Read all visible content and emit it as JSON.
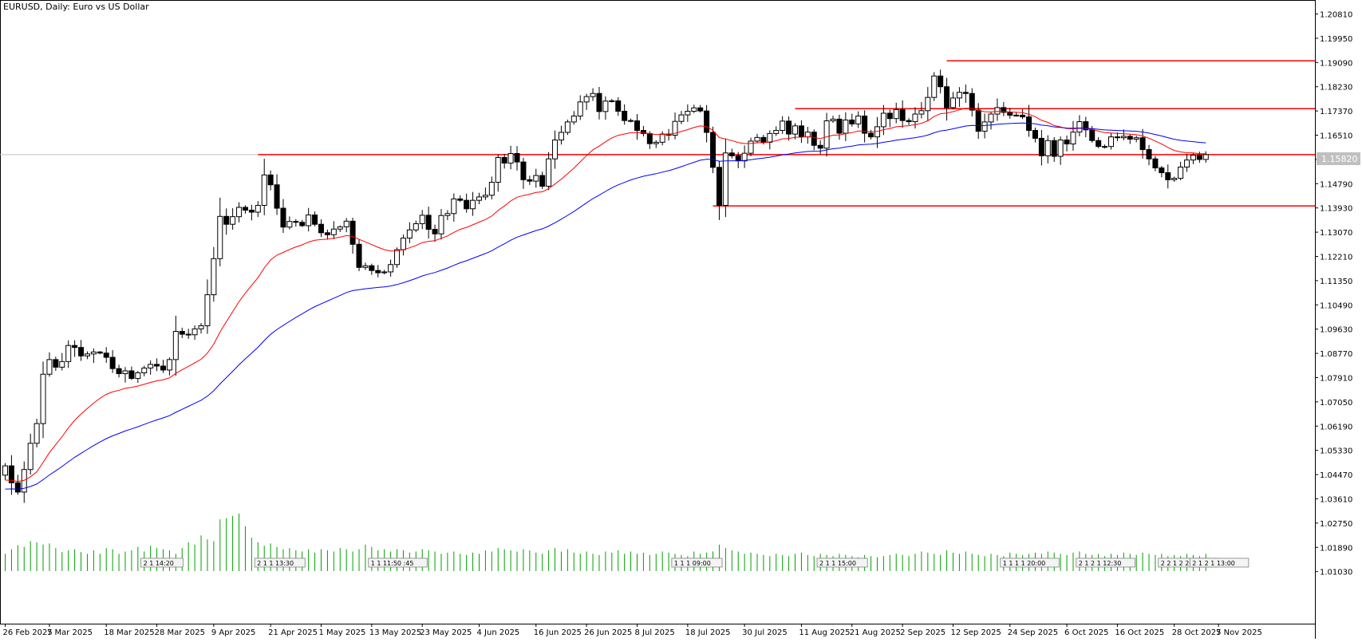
{
  "header": {
    "title": "EURUSD, Daily:  Euro vs US Dollar"
  },
  "colors": {
    "background": "#ffffff",
    "bull": "#ffffff",
    "bear": "#000000",
    "ma_fast": "#ff0000",
    "ma_slow": "#0000ff",
    "level_lines": "#ff0000",
    "volume": "#00a000",
    "price_marker": "#c0c0c0"
  },
  "current_price_label": "1.15820",
  "chart_data": {
    "type": "candlestick",
    "symbol": "EURUSD",
    "timeframe": "Daily",
    "grid": false,
    "ylim": [
      1.002,
      1.2108
    ],
    "y_ticks": [
      "1.20810",
      "1.19950",
      "1.19090",
      "1.18230",
      "1.17370",
      "1.16510",
      "1.15650",
      "1.14790",
      "1.13930",
      "1.13070",
      "1.12210",
      "1.11350",
      "1.10490",
      "1.09630",
      "1.08770",
      "1.07910",
      "1.07050",
      "1.06190",
      "1.05330",
      "1.04470",
      "1.03610",
      "1.02750",
      "1.01890",
      "1.01030"
    ],
    "x_tick_labels": [
      "26 Feb 2025",
      "7 Mar 2025",
      "18 Mar 2025",
      "28 Mar 2025",
      "9 Apr 2025",
      "21 Apr 2025",
      "1 May 2025",
      "13 May 2025",
      "23 May 2025",
      "4 Jun 2025",
      "16 Jun 2025",
      "26 Jun 2025",
      "8 Jul 2025",
      "18 Jul 2025",
      "30 Jul 2025",
      "11 Aug 2025",
      "21 Aug 2025",
      "2 Sep 2025",
      "12 Sep 2025",
      "24 Sep 2025",
      "6 Oct 2025",
      "16 Oct 2025",
      "28 Oct 2025",
      "7 Nov 2025"
    ],
    "x_tick_candle_index": [
      0,
      7,
      16,
      24,
      33,
      42,
      50,
      58,
      66,
      75,
      84,
      92,
      100,
      108,
      117,
      126,
      134,
      142,
      150,
      159,
      168,
      176,
      185,
      192
    ],
    "closes": [
      1.0478,
      1.0418,
      1.0385,
      1.0465,
      1.0558,
      1.0628,
      1.0803,
      1.0855,
      1.0828,
      1.0848,
      1.0905,
      1.0898,
      1.0868,
      1.0875,
      1.0882,
      1.0878,
      1.0863,
      1.0823,
      1.0805,
      1.0815,
      1.0788,
      1.0808,
      1.0825,
      1.0838,
      1.0832,
      1.0818,
      1.0855,
      1.0955,
      1.0945,
      1.0943,
      1.0964,
      1.0975,
      1.1085,
      1.1213,
      1.1363,
      1.1335,
      1.1362,
      1.1395,
      1.1385,
      1.1378,
      1.1402,
      1.151,
      1.1475,
      1.1392,
      1.1325,
      1.1345,
      1.1342,
      1.133,
      1.1368,
      1.1335,
      1.1305,
      1.1298,
      1.1318,
      1.1326,
      1.1346,
      1.1264,
      1.1182,
      1.1188,
      1.1171,
      1.1163,
      1.1166,
      1.1192,
      1.1245,
      1.1286,
      1.1315,
      1.1337,
      1.1367,
      1.1317,
      1.1301,
      1.1366,
      1.1373,
      1.1425,
      1.142,
      1.139,
      1.142,
      1.1432,
      1.1438,
      1.1484,
      1.1572,
      1.1552,
      1.1586,
      1.1556,
      1.1493,
      1.1488,
      1.1508,
      1.147,
      1.1567,
      1.1634,
      1.1661,
      1.1698,
      1.1719,
      1.1769,
      1.1788,
      1.1799,
      1.1735,
      1.1772,
      1.1773,
      1.1736,
      1.1703,
      1.1702,
      1.1668,
      1.1657,
      1.1621,
      1.1626,
      1.1655,
      1.1651,
      1.17,
      1.1723,
      1.1736,
      1.1748,
      1.1737,
      1.1661,
      1.1537,
      1.1402,
      1.1588,
      1.1578,
      1.156,
      1.1587,
      1.163,
      1.1643,
      1.1626,
      1.1657,
      1.1668,
      1.1701,
      1.1655,
      1.1684,
      1.1645,
      1.1662,
      1.1615,
      1.1605,
      1.1702,
      1.1708,
      1.1658,
      1.1705,
      1.1691,
      1.1719,
      1.1658,
      1.1645,
      1.1681,
      1.1729,
      1.171,
      1.1742,
      1.1703,
      1.1699,
      1.1726,
      1.1738,
      1.1785,
      1.1861,
      1.1823,
      1.1749,
      1.1783,
      1.1803,
      1.1799,
      1.174,
      1.1665,
      1.1698,
      1.1726,
      1.1749,
      1.1732,
      1.1722,
      1.1722,
      1.1716,
      1.1668,
      1.164,
      1.1578,
      1.1632,
      1.1576,
      1.1634,
      1.162,
      1.1662,
      1.1699,
      1.167,
      1.1632,
      1.1611,
      1.1611,
      1.1645,
      1.1642,
      1.1647,
      1.1637,
      1.1642,
      1.16,
      1.1567,
      1.1535,
      1.1518,
      1.1493,
      1.1498,
      1.1538,
      1.1563,
      1.158,
      1.1565,
      1.1582
    ],
    "ma_fast_name": "",
    "ma_slow_name": "",
    "ma_fast_period": 20,
    "ma_slow_period": 50,
    "ma_fast_seed": 1.0422,
    "ma_slow_seed": 1.0392,
    "horizontal_levels": [
      {
        "price": 1.1915,
        "from_index": 149
      },
      {
        "price": 1.1745,
        "from_index": 125
      },
      {
        "price": 1.1582,
        "from_index": 40
      },
      {
        "price": 1.14,
        "from_index": 112
      }
    ],
    "volume_heights": [
      0.3,
      0.38,
      0.45,
      0.42,
      0.52,
      0.5,
      0.46,
      0.48,
      0.4,
      0.33,
      0.36,
      0.38,
      0.33,
      0.3,
      0.36,
      0.3,
      0.4,
      0.38,
      0.3,
      0.34,
      0.36,
      0.42,
      0.34,
      0.44,
      0.4,
      0.38,
      0.36,
      0.3,
      0.4,
      0.5,
      0.46,
      0.62,
      0.55,
      0.52,
      0.9,
      0.92,
      0.96,
      1.0,
      0.78,
      0.58,
      0.5,
      0.44,
      0.48,
      0.42,
      0.38,
      0.4,
      0.36,
      0.34,
      0.38,
      0.32,
      0.38,
      0.36,
      0.34,
      0.4,
      0.38,
      0.34,
      0.38,
      0.46,
      0.42,
      0.36,
      0.38,
      0.34,
      0.38,
      0.36,
      0.32,
      0.34,
      0.38,
      0.36,
      0.34,
      0.3,
      0.32,
      0.34,
      0.3,
      0.28,
      0.32,
      0.3,
      0.36,
      0.34,
      0.4,
      0.38,
      0.36,
      0.34,
      0.38,
      0.36,
      0.32,
      0.3,
      0.36,
      0.4,
      0.34,
      0.38,
      0.32,
      0.3,
      0.34,
      0.3,
      0.28,
      0.34,
      0.32,
      0.36,
      0.3,
      0.34,
      0.3,
      0.32,
      0.28,
      0.3,
      0.34,
      0.32,
      0.3,
      0.28,
      0.26,
      0.34,
      0.3,
      0.32,
      0.34,
      0.46,
      0.4,
      0.36,
      0.34,
      0.3,
      0.32,
      0.3,
      0.28,
      0.26,
      0.3,
      0.28,
      0.26,
      0.3,
      0.32,
      0.28,
      0.26,
      0.3,
      0.28,
      0.26,
      0.3,
      0.28,
      0.26,
      0.24,
      0.28,
      0.26,
      0.24,
      0.26,
      0.28,
      0.3,
      0.28,
      0.26,
      0.3,
      0.34,
      0.32,
      0.3,
      0.28,
      0.36,
      0.32,
      0.3,
      0.34,
      0.3,
      0.28,
      0.26,
      0.3,
      0.28,
      0.26,
      0.32,
      0.3,
      0.28,
      0.3,
      0.32,
      0.3,
      0.34,
      0.32,
      0.3,
      0.28,
      0.32,
      0.34,
      0.3,
      0.28,
      0.3,
      0.26,
      0.3,
      0.28,
      0.32,
      0.3,
      0.28,
      0.32,
      0.3,
      0.28,
      0.3,
      0.26,
      0.28,
      0.26,
      0.3,
      0.28,
      0.26,
      0.3,
      0.28,
      0.26
    ],
    "event_markers": [
      {
        "candle_index": 24,
        "text": "2 1 14:20"
      },
      {
        "candle_index": 42,
        "text": "2 1 1 13:30"
      },
      {
        "candle_index": 60,
        "text": "1 1 11:50 :45"
      },
      {
        "candle_index": 108,
        "text": "1 1 1 09:00"
      },
      {
        "candle_index": 131,
        "text": "2 1 1 15:00"
      },
      {
        "candle_index": 160,
        "text": "1 1 1 1 20:00"
      },
      {
        "candle_index": 172,
        "text": "2 1 2 1 12:30"
      },
      {
        "candle_index": 185,
        "text": "2 2 1 2 20:40"
      },
      {
        "candle_index": 207,
        "text": "2 1 2 1 13:00"
      }
    ]
  }
}
